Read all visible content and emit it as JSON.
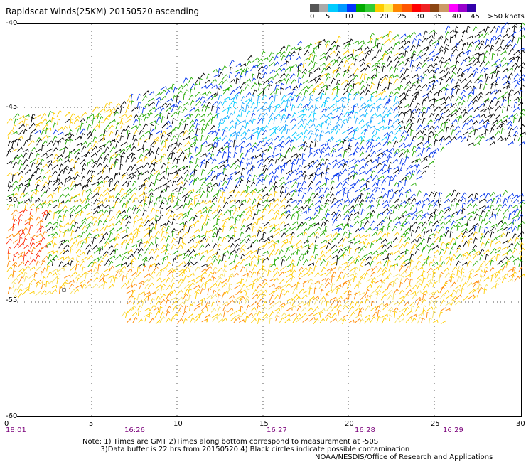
{
  "title": "Rapidscat Winds(25KM) 20150520 ascending",
  "legend": {
    "colors": [
      "#555555",
      "#aaaaaa",
      "#00ccff",
      "#0099ff",
      "#0033ff",
      "#00aa00",
      "#33cc33",
      "#ffcc00",
      "#ffee55",
      "#ff8800",
      "#ff5500",
      "#ff0000",
      "#ee2222",
      "#8b4513",
      "#cc9966",
      "#ff00ff",
      "#9900cc",
      "#3300aa"
    ],
    "labels": [
      "0",
      "5",
      "10",
      "15",
      "20",
      "25",
      "30",
      "35",
      "40",
      "45",
      ">50 knots"
    ]
  },
  "y_axis": [
    "-40",
    "-45",
    "-50",
    "-55",
    "-60"
  ],
  "x_axis": [
    "0",
    "5",
    "10",
    "15",
    "20",
    "25",
    "30"
  ],
  "times": [
    "18:01",
    "16:26",
    "16:27",
    "16:28",
    "16:29"
  ],
  "notes": "Note: 1) Times are GMT 2)Times along bottom correspond to measurement at -50S\n        3)Data buffer is 22 hrs from 20150520 4) Black circles indicate possible contamination",
  "credit": "NOAA/NESDIS/Office of Research and Applications",
  "wind_colors": {
    "black": "#000000",
    "blue": "#0033ee",
    "light_blue": "#1aa0ff",
    "cyan": "#00ccff",
    "green": "#22aa00",
    "yellow": "#ffcc00",
    "light_yellow": "#f7e060",
    "orange": "#ff8800",
    "red": "#ff2200"
  }
}
